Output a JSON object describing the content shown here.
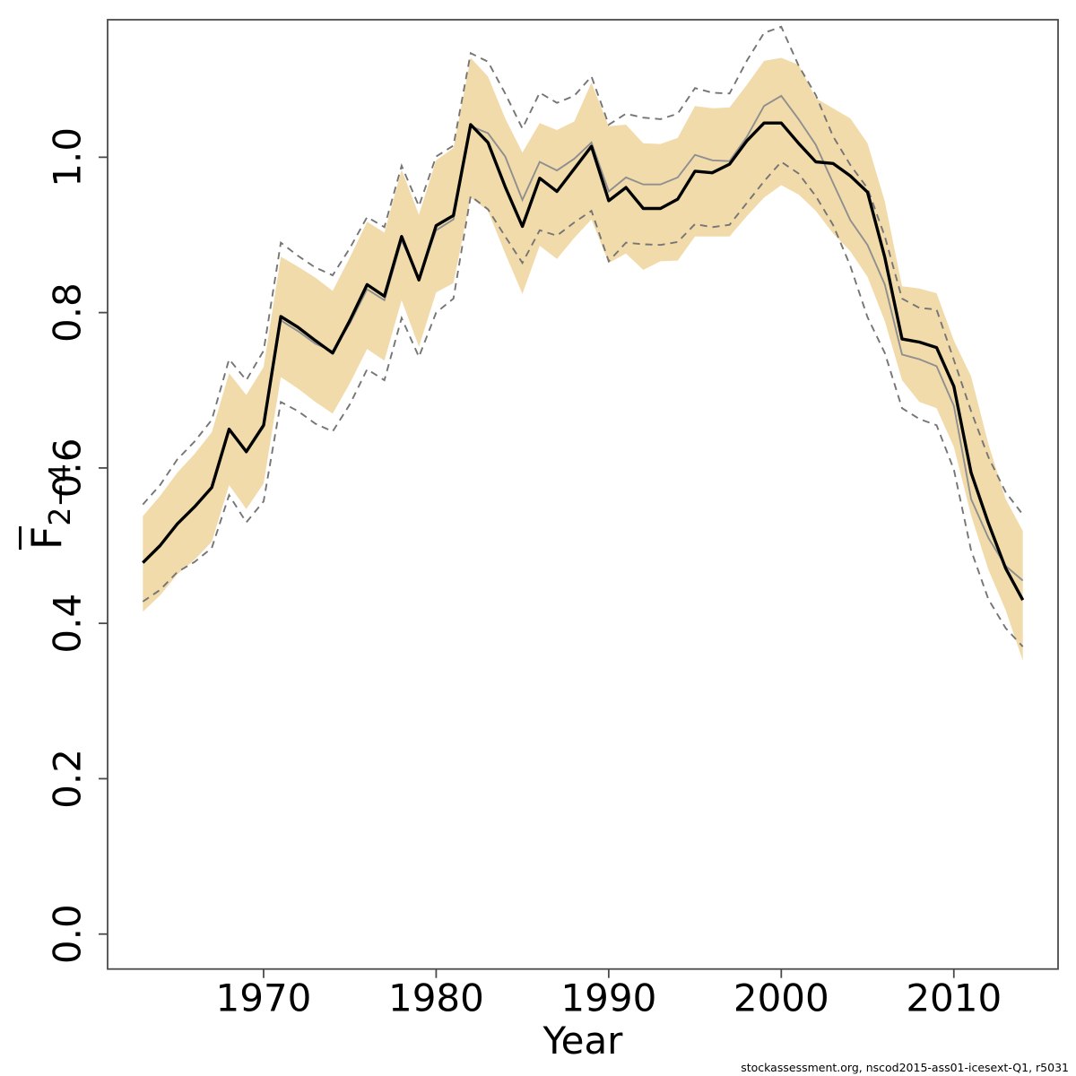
{
  "footer": "stockassessment.org, nscod2015-ass01-icesext-Q1, r5031",
  "chart_data": {
    "type": "line",
    "title": "",
    "xlabel": "Year",
    "ylabel_f": "F",
    "ylabel_sub": "2−4",
    "legend": "none",
    "grid": "off",
    "x_ticks": [
      1970,
      1980,
      1990,
      2000,
      2010
    ],
    "y_ticks": [
      0.0,
      0.2,
      0.4,
      0.6,
      0.8,
      1.0
    ],
    "x_range": [
      1960.96,
      2016.04
    ],
    "y_range": [
      -0.045,
      1.177
    ],
    "colors": {
      "band": "#f2dbab",
      "estimate_line": "#000000",
      "comparison_line": "#8f8f8f",
      "dashed_ci": "#757575",
      "axis": "#4a4a4a",
      "text": "#000000"
    },
    "years": [
      1963,
      1964,
      1965,
      1966,
      1967,
      1968,
      1969,
      1970,
      1971,
      1972,
      1973,
      1974,
      1975,
      1976,
      1977,
      1978,
      1979,
      1980,
      1981,
      1982,
      1983,
      1984,
      1985,
      1986,
      1987,
      1988,
      1989,
      1990,
      1991,
      1992,
      1993,
      1994,
      1995,
      1996,
      1997,
      1998,
      1999,
      2000,
      2001,
      2002,
      2003,
      2004,
      2005,
      2006,
      2007,
      2008,
      2009,
      2010,
      2011,
      2012,
      2013,
      2014
    ],
    "series": {
      "estimate": [
        0.478,
        0.5,
        0.528,
        0.55,
        0.575,
        0.65,
        0.621,
        0.655,
        0.795,
        0.781,
        0.764,
        0.748,
        0.79,
        0.836,
        0.821,
        0.898,
        0.842,
        0.912,
        0.925,
        1.042,
        1.019,
        0.962,
        0.911,
        0.973,
        0.956,
        0.985,
        1.014,
        0.944,
        0.961,
        0.934,
        0.934,
        0.946,
        0.982,
        0.98,
        0.991,
        1.021,
        1.044,
        1.044,
        1.018,
        0.994,
        0.992,
        0.976,
        0.955,
        0.871,
        0.766,
        0.762,
        0.755,
        0.705,
        0.594,
        0.529,
        0.471,
        0.43
      ],
      "comparison": [
        0.478,
        0.5,
        0.527,
        0.549,
        0.574,
        0.648,
        0.62,
        0.653,
        0.79,
        0.776,
        0.76,
        0.75,
        0.786,
        0.83,
        0.816,
        0.893,
        0.845,
        0.906,
        0.92,
        1.04,
        1.031,
        1.001,
        0.945,
        0.994,
        0.983,
        0.998,
        1.019,
        0.956,
        0.974,
        0.965,
        0.965,
        0.974,
        1.003,
        0.996,
        0.995,
        1.026,
        1.066,
        1.079,
        1.049,
        1.016,
        0.967,
        0.919,
        0.887,
        0.836,
        0.746,
        0.74,
        0.731,
        0.68,
        0.56,
        0.51,
        0.474,
        0.455
      ],
      "band_hi": [
        0.538,
        0.564,
        0.594,
        0.618,
        0.646,
        0.722,
        0.694,
        0.73,
        0.872,
        0.859,
        0.845,
        0.828,
        0.871,
        0.917,
        0.903,
        0.984,
        0.926,
        0.996,
        1.012,
        1.128,
        1.104,
        1.05,
        1.006,
        1.044,
        1.035,
        1.046,
        1.096,
        1.04,
        1.042,
        1.018,
        1.017,
        1.025,
        1.066,
        1.063,
        1.064,
        1.093,
        1.124,
        1.128,
        1.119,
        1.076,
        1.063,
        1.05,
        1.018,
        0.943,
        0.834,
        0.831,
        0.825,
        0.764,
        0.718,
        0.631,
        0.56,
        0.519
      ],
      "band_lo": [
        0.415,
        0.436,
        0.463,
        0.482,
        0.505,
        0.578,
        0.547,
        0.58,
        0.717,
        0.702,
        0.685,
        0.67,
        0.709,
        0.753,
        0.738,
        0.816,
        0.756,
        0.826,
        0.838,
        0.948,
        0.931,
        0.876,
        0.824,
        0.886,
        0.869,
        0.896,
        0.92,
        0.864,
        0.876,
        0.855,
        0.866,
        0.867,
        0.898,
        0.898,
        0.898,
        0.924,
        0.948,
        0.964,
        0.952,
        0.931,
        0.902,
        0.879,
        0.846,
        0.789,
        0.713,
        0.685,
        0.677,
        0.627,
        0.539,
        0.469,
        0.417,
        0.352
      ],
      "dash_hi": [
        0.553,
        0.578,
        0.611,
        0.634,
        0.662,
        0.74,
        0.713,
        0.751,
        0.89,
        0.873,
        0.858,
        0.848,
        0.883,
        0.923,
        0.91,
        0.989,
        0.937,
        1.001,
        1.015,
        1.134,
        1.123,
        1.082,
        1.037,
        1.083,
        1.07,
        1.079,
        1.104,
        1.042,
        1.056,
        1.051,
        1.049,
        1.056,
        1.089,
        1.083,
        1.082,
        1.124,
        1.16,
        1.168,
        1.118,
        1.08,
        1.027,
        0.99,
        0.96,
        0.898,
        0.818,
        0.806,
        0.804,
        0.739,
        0.673,
        0.614,
        0.569,
        0.54
      ],
      "dash_lo": [
        0.428,
        0.443,
        0.466,
        0.479,
        0.497,
        0.565,
        0.53,
        0.557,
        0.685,
        0.673,
        0.657,
        0.647,
        0.682,
        0.727,
        0.713,
        0.793,
        0.743,
        0.8,
        0.818,
        0.95,
        0.933,
        0.898,
        0.864,
        0.906,
        0.899,
        0.916,
        0.931,
        0.866,
        0.89,
        0.888,
        0.887,
        0.891,
        0.914,
        0.91,
        0.913,
        0.941,
        0.969,
        0.994,
        0.979,
        0.95,
        0.913,
        0.86,
        0.794,
        0.748,
        0.677,
        0.663,
        0.655,
        0.598,
        0.494,
        0.431,
        0.394,
        0.37
      ]
    }
  }
}
